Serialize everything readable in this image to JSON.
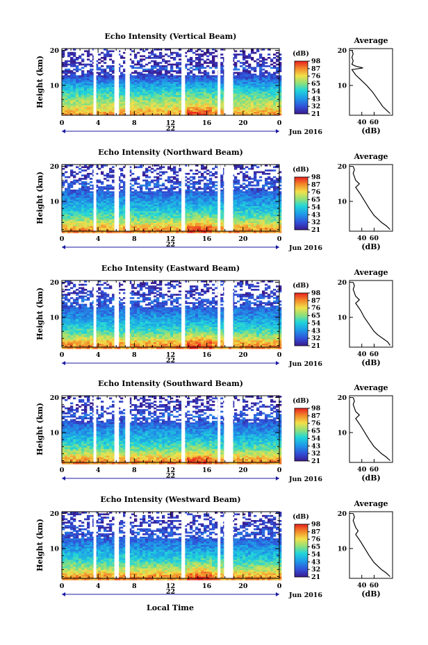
{
  "figure": {
    "xlabel": "Local Time",
    "date_label": "Jun 2016",
    "colorbar_unit": "(dB)",
    "average_title": "Average",
    "average_xlabel": "(dB)"
  },
  "chart_data": [
    {
      "type": "heatmap",
      "title": "Echo Intensity (Vertical Beam)",
      "ylabel": "Height (km)",
      "y_ticks": [
        10,
        20
      ],
      "ylim": [
        1.5,
        20.5
      ],
      "x_ticks": [
        "0",
        "4",
        "8",
        "12",
        "16",
        "20",
        "0"
      ],
      "xlim_hours": [
        0,
        24
      ],
      "day_marker": "22",
      "colorbar_ticks": [
        21,
        32,
        43,
        54,
        65,
        76,
        87,
        98
      ],
      "colorbar_tick_labels": [
        "21",
        "32",
        "43",
        "54",
        "65",
        "76",
        "87",
        "98"
      ],
      "data_gaps_hours": [
        [
          3.5,
          3.8
        ],
        [
          5.8,
          6.3
        ],
        [
          7.0,
          7.5
        ],
        [
          13.2,
          13.6
        ],
        [
          17.2,
          17.5
        ],
        [
          17.9,
          18.9
        ]
      ],
      "average_profile": {
        "xlim": [
          20,
          90
        ],
        "x_ticks": [
          40,
          60
        ],
        "height_km": [
          2,
          3,
          4,
          5,
          6,
          8,
          10,
          12,
          13,
          14,
          14.5,
          15,
          15.5,
          16,
          17,
          18,
          19,
          20
        ],
        "echo_db": [
          86,
          80,
          74,
          70,
          66,
          58,
          48,
          36,
          30,
          26,
          24,
          42,
          30,
          24,
          26,
          24,
          26,
          24
        ]
      }
    },
    {
      "type": "heatmap",
      "title": "Echo Intensity (Northward Beam)",
      "ylabel": "Height (km)",
      "y_ticks": [
        10,
        20
      ],
      "ylim": [
        1.5,
        20.5
      ],
      "x_ticks": [
        "0",
        "4",
        "8",
        "12",
        "16",
        "20",
        "0"
      ],
      "xlim_hours": [
        0,
        24
      ],
      "day_marker": "22",
      "colorbar_ticks": [
        21,
        32,
        43,
        54,
        65,
        76,
        87,
        98
      ],
      "colorbar_tick_labels": [
        "21",
        "32",
        "43",
        "54",
        "65",
        "76",
        "87",
        "98"
      ],
      "data_gaps_hours": [
        [
          3.5,
          3.8
        ],
        [
          5.8,
          6.3
        ],
        [
          7.0,
          7.5
        ],
        [
          13.2,
          13.6
        ],
        [
          17.2,
          17.5
        ],
        [
          17.9,
          18.9
        ]
      ],
      "average_profile": {
        "xlim": [
          20,
          90
        ],
        "x_ticks": [
          40,
          60
        ],
        "height_km": [
          2,
          3,
          4,
          5,
          6,
          8,
          10,
          12,
          13,
          14,
          15,
          16,
          17,
          18,
          19,
          20
        ],
        "echo_db": [
          86,
          80,
          72,
          66,
          60,
          52,
          45,
          38,
          34,
          30,
          36,
          30,
          28,
          26,
          28,
          26
        ]
      }
    },
    {
      "type": "heatmap",
      "title": "Echo Intensity (Eastward Beam)",
      "ylabel": "Height (km)",
      "y_ticks": [
        10,
        20
      ],
      "ylim": [
        1.5,
        20.5
      ],
      "x_ticks": [
        "0",
        "4",
        "8",
        "12",
        "16",
        "20",
        "0"
      ],
      "xlim_hours": [
        0,
        24
      ],
      "day_marker": "22",
      "colorbar_ticks": [
        21,
        32,
        43,
        54,
        65,
        76,
        87,
        98
      ],
      "colorbar_tick_labels": [
        "21",
        "32",
        "43",
        "54",
        "65",
        "76",
        "87",
        "98"
      ],
      "data_gaps_hours": [
        [
          3.5,
          3.8
        ],
        [
          5.8,
          6.3
        ],
        [
          7.0,
          7.5
        ],
        [
          13.2,
          13.6
        ],
        [
          17.2,
          17.5
        ],
        [
          17.9,
          18.9
        ]
      ],
      "average_profile": {
        "xlim": [
          20,
          90
        ],
        "x_ticks": [
          40,
          60
        ],
        "height_km": [
          2,
          3,
          4,
          5,
          6,
          8,
          10,
          12,
          13,
          14,
          15,
          16,
          17,
          18,
          19,
          20
        ],
        "echo_db": [
          86,
          82,
          74,
          66,
          60,
          52,
          44,
          38,
          34,
          30,
          36,
          30,
          28,
          26,
          28,
          26
        ]
      }
    },
    {
      "type": "heatmap",
      "title": "Echo Intensity (Southward Beam)",
      "ylabel": "Height (km)",
      "y_ticks": [
        10,
        20
      ],
      "ylim": [
        1.5,
        20.5
      ],
      "x_ticks": [
        "0",
        "4",
        "8",
        "12",
        "16",
        "20",
        "0"
      ],
      "xlim_hours": [
        0,
        24
      ],
      "day_marker": "22",
      "colorbar_ticks": [
        21,
        32,
        43,
        54,
        65,
        76,
        87,
        98
      ],
      "colorbar_tick_labels": [
        "21",
        "32",
        "43",
        "54",
        "65",
        "76",
        "87",
        "98"
      ],
      "data_gaps_hours": [
        [
          3.5,
          3.8
        ],
        [
          5.8,
          6.3
        ],
        [
          7.0,
          7.5
        ],
        [
          13.2,
          13.6
        ],
        [
          17.2,
          17.5
        ],
        [
          17.9,
          18.9
        ]
      ],
      "average_profile": {
        "xlim": [
          20,
          90
        ],
        "x_ticks": [
          40,
          60
        ],
        "height_km": [
          2,
          3,
          4,
          5,
          6,
          8,
          10,
          12,
          13,
          14,
          15,
          16,
          17,
          18,
          19,
          20
        ],
        "echo_db": [
          86,
          80,
          72,
          66,
          60,
          52,
          45,
          38,
          34,
          30,
          36,
          30,
          28,
          26,
          28,
          26
        ]
      }
    },
    {
      "type": "heatmap",
      "title": "Echo Intensity (Westward Beam)",
      "ylabel": "Height (km)",
      "y_ticks": [
        10,
        20
      ],
      "ylim": [
        1.5,
        20.5
      ],
      "x_ticks": [
        "0",
        "4",
        "8",
        "12",
        "16",
        "20",
        "0"
      ],
      "xlim_hours": [
        0,
        24
      ],
      "day_marker": "22",
      "colorbar_ticks": [
        21,
        32,
        43,
        54,
        65,
        76,
        87,
        98
      ],
      "colorbar_tick_labels": [
        "21",
        "32",
        "43",
        "54",
        "65",
        "76",
        "87",
        "98"
      ],
      "data_gaps_hours": [
        [
          3.5,
          3.8
        ],
        [
          5.8,
          6.3
        ],
        [
          7.0,
          7.5
        ],
        [
          13.2,
          13.6
        ],
        [
          17.2,
          17.5
        ],
        [
          17.9,
          18.9
        ]
      ],
      "average_profile": {
        "xlim": [
          20,
          90
        ],
        "x_ticks": [
          40,
          60
        ],
        "height_km": [
          2,
          3,
          4,
          5,
          6,
          8,
          10,
          12,
          13,
          14,
          15,
          16,
          17,
          18,
          19,
          20
        ],
        "echo_db": [
          86,
          80,
          72,
          66,
          60,
          52,
          45,
          38,
          34,
          30,
          34,
          30,
          28,
          26,
          28,
          26
        ]
      }
    }
  ]
}
